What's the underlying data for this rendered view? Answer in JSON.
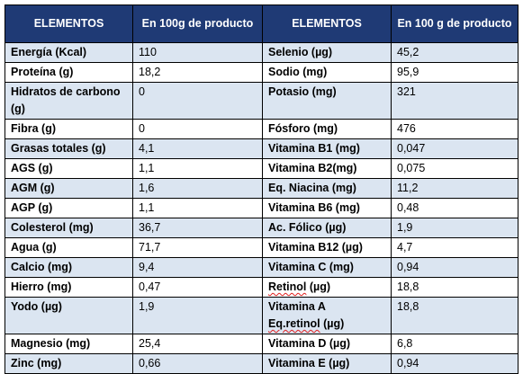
{
  "header": {
    "col1": "ELEMENTOS",
    "col2": "En 100g de producto",
    "col3": "ELEMENTOS",
    "col4": "En 100 g de producto"
  },
  "rows": [
    {
      "left_name": "Energía (Kcal)",
      "left_value": "110",
      "right_name": "Selenio (µg)",
      "right_value": "45,2"
    },
    {
      "left_name": "Proteína (g)",
      "left_value": "18,2",
      "right_name": "Sodio (mg)",
      "right_value": "95,9"
    },
    {
      "left_name": "Hidratos de carbono (g)",
      "left_value": "0",
      "right_name": "Potasio (mg)",
      "right_value": "321"
    },
    {
      "left_name": "Fibra (g)",
      "left_value": "0",
      "right_name": "Fósforo (mg)",
      "right_value": "476"
    },
    {
      "left_name": "Grasas totales (g)",
      "left_value": "4,1",
      "right_name": "Vitamina B1 (mg)",
      "right_value": "0,047"
    },
    {
      "left_name": "AGS (g)",
      "left_value": "1,1",
      "right_name": "Vitamina B2(mg)",
      "right_value": "0,075"
    },
    {
      "left_name": "AGM (g)",
      "left_value": "1,6",
      "right_name": "Eq. Niacina (mg)",
      "right_value": "11,2"
    },
    {
      "left_name": "AGP (g)",
      "left_value": "1,1",
      "right_name": "Vitamina B6 (mg)",
      "right_value": "0,48"
    },
    {
      "left_name": "Colesterol (mg)",
      "left_value": "36,7",
      "right_name": "Ac. Fólico (µg)",
      "right_value": "1,9"
    },
    {
      "left_name": "Agua (g)",
      "left_value": "71,7",
      "right_name": "Vitamina B12 (µg)",
      "right_value": "4,7"
    },
    {
      "left_name": "Calcio (mg)",
      "left_value": "9,4",
      "right_name": "Vitamina C (mg)",
      "right_value": "0,94"
    },
    {
      "left_name": "Hierro (mg)",
      "left_value": "0,47",
      "right_name_word": "Retinol",
      "right_name_rest": " (µg)",
      "right_value": "18,8"
    },
    {
      "left_name": "Yodo (µg)",
      "left_value": "1,9",
      "right_name_line1": "Vitamina A",
      "right_name_word": "Eq.retinol",
      "right_name_rest": " (µg)",
      "right_value": "18,8"
    },
    {
      "left_name": "Magnesio (mg)",
      "left_value": "25,4",
      "right_name": "Vitamina D (µg)",
      "right_value": "6,8"
    },
    {
      "left_name": "Zinc (mg)",
      "left_value": "0,66",
      "right_name": "Vitamina E (µg)",
      "right_value": "0,94"
    }
  ]
}
